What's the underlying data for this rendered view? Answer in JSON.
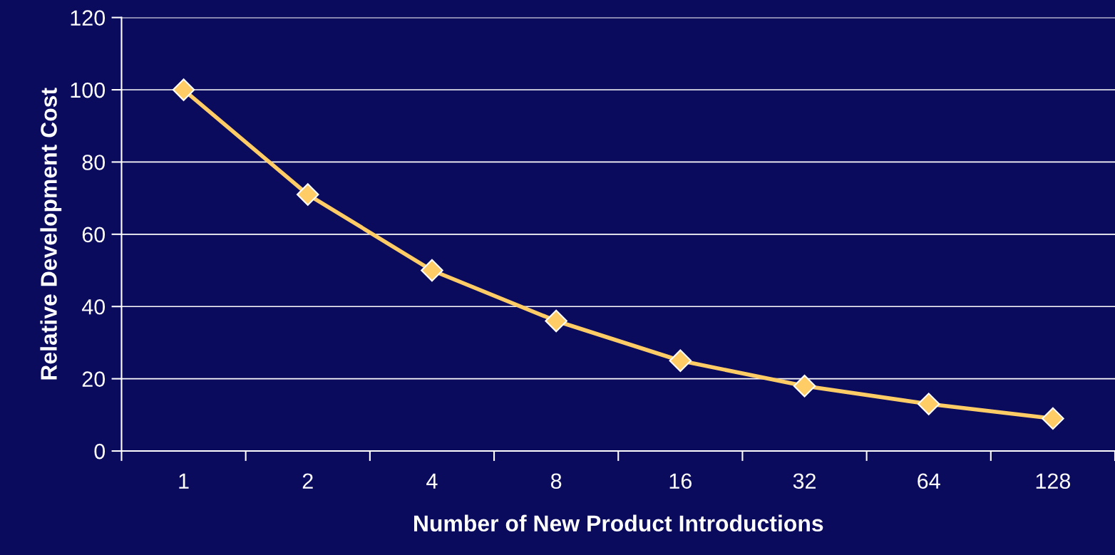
{
  "chart_data": {
    "type": "line",
    "xlabel": "Number of New Product Introductions",
    "ylabel": "Relative Development Cost",
    "categories": [
      "1",
      "2",
      "4",
      "8",
      "16",
      "32",
      "64",
      "128"
    ],
    "series": [
      {
        "color": "#ffcc66",
        "values": [
          100,
          71,
          50,
          36,
          25,
          18,
          13,
          9
        ]
      }
    ],
    "ylim": [
      0,
      120
    ],
    "yticks": [
      0,
      20,
      40,
      60,
      80,
      100,
      120
    ],
    "grid": "y",
    "marker": "diamond",
    "line_style": "solid",
    "legend": false
  }
}
